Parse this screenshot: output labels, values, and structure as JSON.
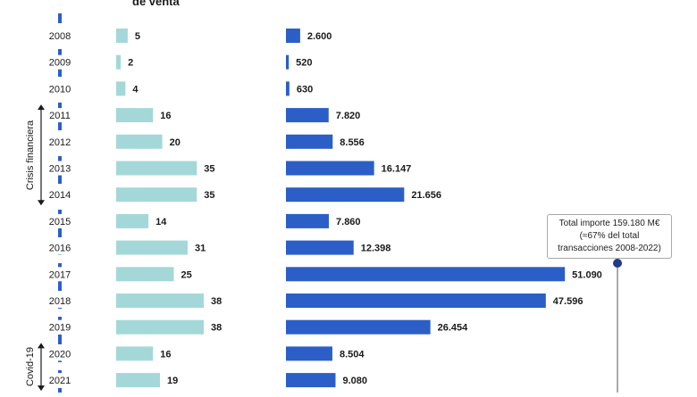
{
  "chart_data": {
    "type": "bar",
    "title": "de venta",
    "categories": [
      "2008",
      "2009",
      "2010",
      "2011",
      "2012",
      "2013",
      "2014",
      "2015",
      "2016",
      "2017",
      "2018",
      "2019",
      "2020",
      "2021"
    ],
    "series": [
      {
        "values": [
          5,
          2,
          4,
          16,
          20,
          35,
          35,
          14,
          31,
          25,
          38,
          38,
          16,
          19
        ],
        "labels": [
          "5",
          "2",
          "4",
          "16",
          "20",
          "35",
          "35",
          "14",
          "31",
          "25",
          "38",
          "38",
          "16",
          "19"
        ],
        "color": "#a4d8d8"
      },
      {
        "values": [
          2600,
          520,
          630,
          7820,
          8556,
          16147,
          21656,
          7860,
          12398,
          51090,
          47596,
          26454,
          8504,
          9080
        ],
        "labels": [
          "2.600",
          "520",
          "630",
          "7.820",
          "8.556",
          "16.147",
          "21.656",
          "7.860",
          "12.398",
          "51.090",
          "47.596",
          "26.454",
          "8.504",
          "9.080"
        ],
        "color": "#2b5fc7"
      }
    ],
    "annotations": {
      "total": [
        "Total importe 159.180 M€",
        "(≈67% del total",
        "transacciones 2008-2022)"
      ],
      "periods": [
        {
          "label": "Crisis financiera",
          "from": "2011",
          "to": "2014"
        },
        {
          "label": "Covid-19",
          "from": "2020",
          "to": "2021"
        }
      ]
    },
    "colors": {
      "axis_dash": "#2b5fc7",
      "text": "#1a1a1a",
      "annotation_line": "#555555",
      "annotation_dot": "#1e3a8a"
    }
  }
}
